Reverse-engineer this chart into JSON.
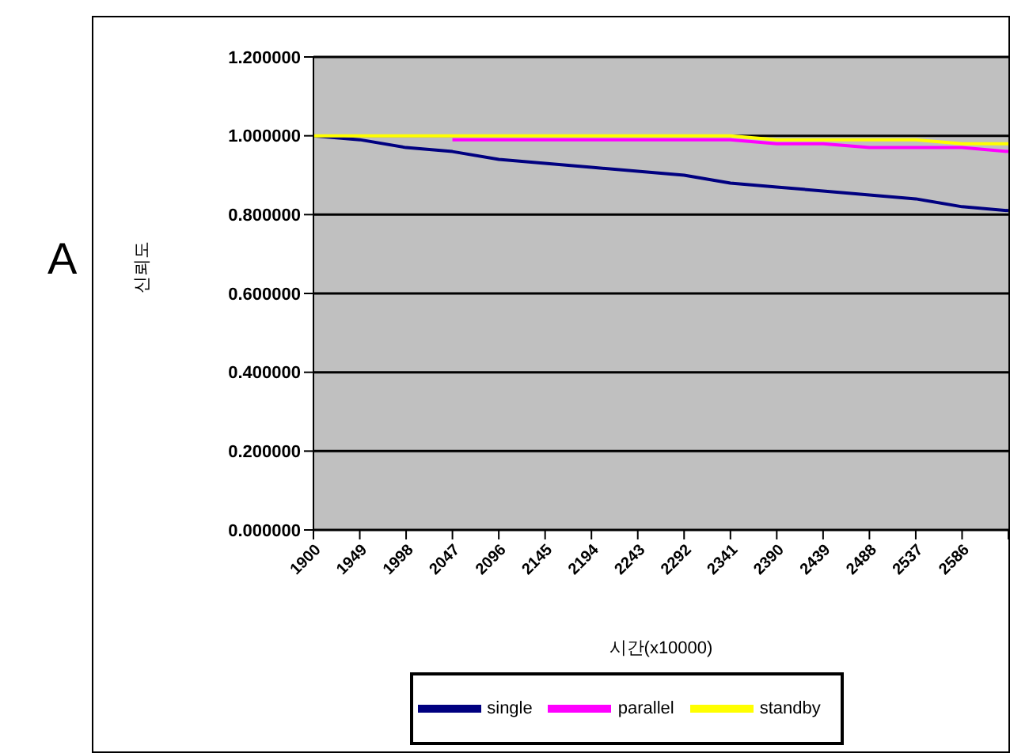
{
  "chart_data": {
    "type": "line",
    "annotations": [
      "A"
    ],
    "xlabel": "시간(x10000)",
    "ylabel": "신뢰도",
    "categories": [
      "1900",
      "1949",
      "1998",
      "2047",
      "2096",
      "2145",
      "2194",
      "2243",
      "2292",
      "2341",
      "2390",
      "2439",
      "2488",
      "2537",
      "2586",
      null
    ],
    "series": [
      {
        "name": "single",
        "color": "#000080",
        "values": [
          1.0,
          0.99,
          0.97,
          0.96,
          0.94,
          0.93,
          0.92,
          0.91,
          0.9,
          0.88,
          0.87,
          0.86,
          0.85,
          0.84,
          0.82,
          0.81
        ]
      },
      {
        "name": "parallel",
        "color": "#ff00ff",
        "values": [
          null,
          null,
          null,
          0.99,
          0.99,
          0.99,
          0.99,
          0.99,
          0.99,
          0.99,
          0.98,
          0.98,
          0.97,
          0.97,
          0.97,
          0.96
        ]
      },
      {
        "name": "standby",
        "color": "#ffff00",
        "values": [
          1.0,
          1.0,
          1.0,
          1.0,
          1.0,
          1.0,
          1.0,
          1.0,
          1.0,
          1.0,
          0.99,
          0.99,
          0.99,
          0.99,
          0.98,
          0.98
        ]
      }
    ],
    "ylim": [
      0,
      1.2
    ],
    "yticks": [
      {
        "value": 0,
        "label": "0.000000"
      },
      {
        "value": 0.2,
        "label": "0.200000"
      },
      {
        "value": 0.4,
        "label": "0.400000"
      },
      {
        "value": 0.6,
        "label": "0.600000"
      },
      {
        "value": 0.8,
        "label": "0.800000"
      },
      {
        "value": 1.0,
        "label": "1.000000"
      },
      {
        "value": 1.2,
        "label": "1.200000"
      }
    ],
    "grid": "y",
    "legend": "bottom",
    "marker": "none",
    "line_style": "solid"
  }
}
